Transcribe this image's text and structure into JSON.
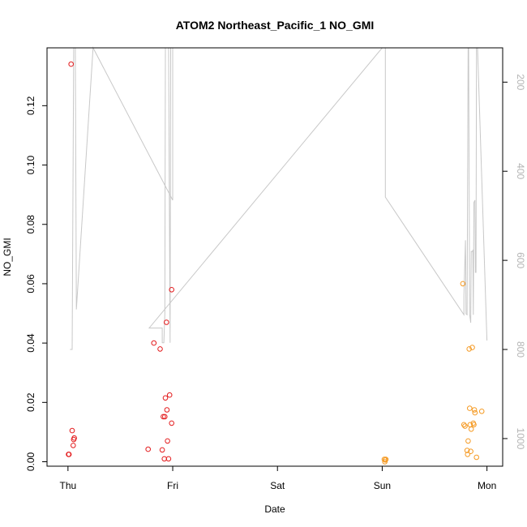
{
  "chart_data": {
    "type": "scatter",
    "title": "ATOM2 Northeast_Pacific_1 NO_GMI",
    "xlabel": "Date",
    "ylabel": "NO_GMI",
    "x_units": "days since Thu 00:00",
    "xlim": [
      -0.2,
      4.15
    ],
    "ylim": [
      -0.0015,
      0.1395
    ],
    "x_ticks": [
      {
        "value": 0,
        "label": "Thu"
      },
      {
        "value": 1,
        "label": "Fri"
      },
      {
        "value": 2,
        "label": "Sat"
      },
      {
        "value": 3,
        "label": "Sun"
      },
      {
        "value": 4,
        "label": "Mon"
      }
    ],
    "y_ticks": [
      {
        "value": 0.0,
        "label": "0.00"
      },
      {
        "value": 0.02,
        "label": "0.02"
      },
      {
        "value": 0.04,
        "label": "0.04"
      },
      {
        "value": 0.06,
        "label": "0.06"
      },
      {
        "value": 0.08,
        "label": "0.08"
      },
      {
        "value": 0.1,
        "label": "0.10"
      },
      {
        "value": 0.12,
        "label": "0.12"
      }
    ],
    "y2lim": [
      1062,
      123
    ],
    "y2_ticks": [
      {
        "value": 200,
        "label": "200"
      },
      {
        "value": 400,
        "label": "400"
      },
      {
        "value": 600,
        "label": "600"
      },
      {
        "value": 800,
        "label": "800"
      },
      {
        "value": 1000,
        "label": "1000"
      }
    ],
    "colors": {
      "series_red": "#e31a1c",
      "series_orange": "#f59a23",
      "pressure_line": "#c8c8c8",
      "axis": "#000000",
      "y2_tick_text": "#b4b4b4"
    },
    "series": [
      {
        "color_key": "series_red",
        "points": [
          [
            0.005,
            0.0025
          ],
          [
            0.01,
            0.0025
          ],
          [
            0.03,
            0.134
          ],
          [
            0.04,
            0.0105
          ],
          [
            0.05,
            0.0055
          ],
          [
            0.055,
            0.0075
          ],
          [
            0.06,
            0.008
          ],
          [
            0.765,
            0.0042
          ],
          [
            0.82,
            0.04
          ],
          [
            0.88,
            0.038
          ],
          [
            0.9,
            0.004
          ],
          [
            0.91,
            0.0152
          ],
          [
            0.92,
            0.001
          ],
          [
            0.925,
            0.0152
          ],
          [
            0.93,
            0.0215
          ],
          [
            0.94,
            0.047
          ],
          [
            0.945,
            0.0175
          ],
          [
            0.95,
            0.007
          ],
          [
            0.96,
            0.001
          ],
          [
            0.97,
            0.0225
          ],
          [
            0.99,
            0.013
          ],
          [
            0.99,
            0.058
          ]
        ]
      },
      {
        "color_key": "series_orange",
        "points": [
          [
            3.02,
            0.0008
          ],
          [
            3.025,
            0.0
          ],
          [
            3.03,
            0.0006
          ],
          [
            3.035,
            0.0008
          ],
          [
            3.77,
            0.06
          ],
          [
            3.78,
            0.0125
          ],
          [
            3.79,
            0.012
          ],
          [
            3.81,
            0.0038
          ],
          [
            3.815,
            0.0025
          ],
          [
            3.82,
            0.007
          ],
          [
            3.83,
            0.038
          ],
          [
            3.835,
            0.018
          ],
          [
            3.84,
            0.0125
          ],
          [
            3.845,
            0.0035
          ],
          [
            3.85,
            0.011
          ],
          [
            3.86,
            0.0385
          ],
          [
            3.87,
            0.013
          ],
          [
            3.875,
            0.0125
          ],
          [
            3.88,
            0.0175
          ],
          [
            3.885,
            0.0165
          ],
          [
            3.9,
            0.0015
          ],
          [
            3.95,
            0.017
          ]
        ]
      }
    ],
    "pressure_line": [
      [
        0.02,
        800
      ],
      [
        0.04,
        800
      ],
      [
        0.055,
        123
      ],
      [
        0.07,
        123
      ],
      [
        0.08,
        710
      ],
      [
        0.24,
        123
      ],
      [
        1.0,
        465
      ],
      [
        1.0,
        123
      ],
      [
        0.98,
        123
      ],
      [
        0.975,
        785
      ],
      [
        0.96,
        123
      ],
      [
        0.95,
        123
      ],
      [
        0.93,
        123
      ],
      [
        0.925,
        720
      ],
      [
        0.915,
        785
      ],
      [
        0.9,
        785
      ],
      [
        0.9,
        752
      ],
      [
        0.88,
        752
      ],
      [
        0.86,
        752
      ],
      [
        0.775,
        752
      ],
      [
        3.0,
        123
      ],
      [
        3.03,
        123
      ],
      [
        3.03,
        458
      ],
      [
        3.78,
        722
      ],
      [
        3.78,
        680
      ],
      [
        3.795,
        555
      ],
      [
        3.8,
        720
      ],
      [
        3.81,
        722
      ],
      [
        3.82,
        123
      ],
      [
        3.825,
        123
      ],
      [
        3.835,
        722
      ],
      [
        3.845,
        740
      ],
      [
        3.85,
        580
      ],
      [
        3.86,
        580
      ],
      [
        3.865,
        578
      ],
      [
        3.87,
        722
      ],
      [
        3.875,
        470
      ],
      [
        3.885,
        465
      ],
      [
        3.89,
        627
      ],
      [
        3.895,
        627
      ],
      [
        3.9,
        123
      ],
      [
        3.905,
        123
      ],
      [
        3.91,
        123
      ],
      [
        4.0,
        780
      ]
    ]
  }
}
